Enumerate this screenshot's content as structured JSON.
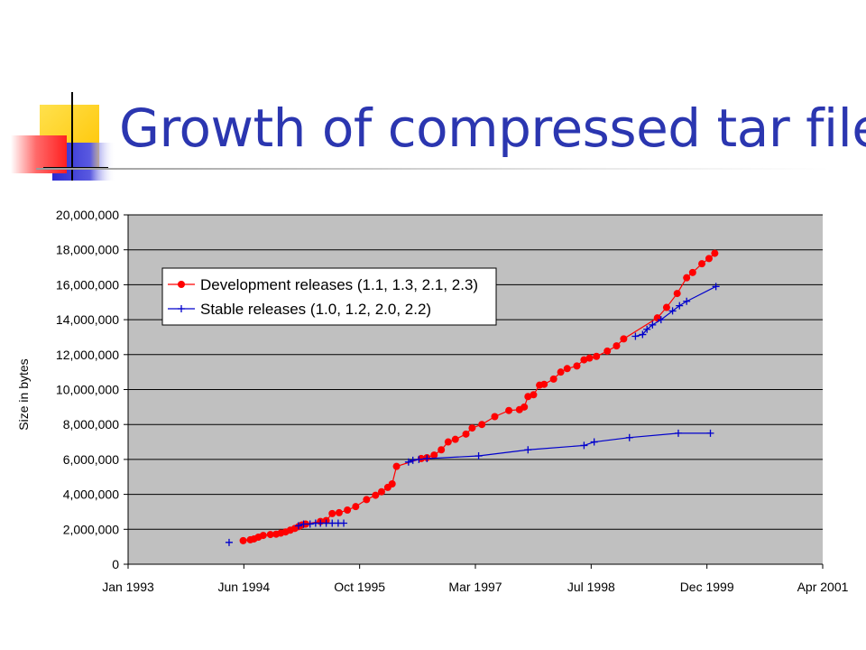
{
  "slide": {
    "title": "Growth of compressed tar file"
  },
  "colors": {
    "title": "#2b36b0",
    "plot_bg": "#c0c0c0",
    "development": "#ff0000",
    "stable": "#0000cc",
    "deco_yellow": "#ffd400",
    "deco_blue": "#3333cc",
    "deco_red": "#ff4040"
  },
  "chart_data": {
    "type": "line",
    "title": "",
    "xlabel": "",
    "ylabel": "Size in bytes",
    "x_scale": "date",
    "xlim": [
      "1993-01-01",
      "2001-04-01"
    ],
    "ylim": [
      0,
      20000000
    ],
    "x_ticks": [
      "Jan 1993",
      "Jun 1994",
      "Oct 1995",
      "Mar 1997",
      "Jul 1998",
      "Dec 1999",
      "Apr 2001"
    ],
    "y_ticks": [
      "0",
      "2,000,000",
      "4,000,000",
      "6,000,000",
      "8,000,000",
      "10,000,000",
      "12,000,000",
      "14,000,000",
      "16,000,000",
      "18,000,000",
      "20,000,000"
    ],
    "grid": "horizontal",
    "legend_position": "top-left",
    "series": [
      {
        "name": "Development releases (1.1, 1.3, 2.1, 2.3)",
        "color": "#ff0000",
        "marker": "circle",
        "points": [
          [
            "1994-05-15",
            1350000
          ],
          [
            "1994-06-15",
            1400000
          ],
          [
            "1994-07-01",
            1450000
          ],
          [
            "1994-07-20",
            1550000
          ],
          [
            "1994-08-10",
            1650000
          ],
          [
            "1994-09-10",
            1700000
          ],
          [
            "1994-10-05",
            1720000
          ],
          [
            "1994-10-25",
            1780000
          ],
          [
            "1994-11-15",
            1850000
          ],
          [
            "1994-12-05",
            1950000
          ],
          [
            "1994-12-25",
            2050000
          ],
          [
            "1995-01-10",
            2150000
          ],
          [
            "1995-01-25",
            2250000
          ],
          [
            "1995-02-10",
            2300000
          ],
          [
            "1995-04-15",
            2450000
          ],
          [
            "1995-05-10",
            2500000
          ],
          [
            "1995-06-05",
            2900000
          ],
          [
            "1995-07-05",
            2950000
          ],
          [
            "1995-08-10",
            3100000
          ],
          [
            "1995-09-15",
            3300000
          ],
          [
            "1995-11-01",
            3700000
          ],
          [
            "1995-12-10",
            3950000
          ],
          [
            "1996-01-05",
            4150000
          ],
          [
            "1996-02-01",
            4400000
          ],
          [
            "1996-02-20",
            4600000
          ],
          [
            "1996-03-10",
            5600000
          ],
          [
            "1996-06-25",
            6050000
          ],
          [
            "1996-07-20",
            6100000
          ],
          [
            "1996-08-20",
            6250000
          ],
          [
            "1996-09-20",
            6550000
          ],
          [
            "1996-10-20",
            7000000
          ],
          [
            "1996-11-20",
            7150000
          ],
          [
            "1997-01-05",
            7450000
          ],
          [
            "1997-02-01",
            7800000
          ],
          [
            "1997-03-15",
            8000000
          ],
          [
            "1997-05-10",
            8450000
          ],
          [
            "1997-07-10",
            8800000
          ],
          [
            "1997-08-25",
            8850000
          ],
          [
            "1997-09-15",
            9000000
          ],
          [
            "1997-10-01",
            9600000
          ],
          [
            "1997-10-25",
            9700000
          ],
          [
            "1997-11-20",
            10250000
          ],
          [
            "1997-12-10",
            10300000
          ],
          [
            "1998-01-20",
            10600000
          ],
          [
            "1998-02-20",
            11000000
          ],
          [
            "1998-03-20",
            11200000
          ],
          [
            "1998-05-01",
            11350000
          ],
          [
            "1998-06-01",
            11700000
          ],
          [
            "1998-06-25",
            11800000
          ],
          [
            "1998-07-25",
            11900000
          ],
          [
            "1998-09-10",
            12200000
          ],
          [
            "1998-10-20",
            12500000
          ],
          [
            "1998-11-20",
            12900000
          ],
          [
            "1999-04-15",
            14100000
          ],
          [
            "1999-05-25",
            14700000
          ],
          [
            "1999-07-10",
            15500000
          ],
          [
            "1999-08-20",
            16400000
          ],
          [
            "1999-09-15",
            16700000
          ],
          [
            "1999-10-25",
            17200000
          ],
          [
            "1999-11-25",
            17500000
          ],
          [
            "1999-12-20",
            17800000
          ]
        ]
      },
      {
        "name": "Stable releases (1.0, 1.2, 2.0, 2.2)",
        "color": "#0000cc",
        "marker": "plus",
        "points_segments": [
          [
            [
              "1994-03-15",
              1250000
            ]
          ],
          [
            [
              "1995-01-10",
              2200000
            ],
            [
              "1995-02-01",
              2300000
            ],
            [
              "1995-03-01",
              2300000
            ],
            [
              "1995-03-25",
              2350000
            ],
            [
              "1995-04-15",
              2350000
            ],
            [
              "1995-05-10",
              2350000
            ],
            [
              "1995-06-05",
              2350000
            ],
            [
              "1995-07-01",
              2350000
            ],
            [
              "1995-07-25",
              2350000
            ]
          ],
          [
            [
              "1996-05-01",
              5850000
            ],
            [
              "1996-05-20",
              5950000
            ],
            [
              "1996-06-15",
              6000000
            ],
            [
              "1996-07-20",
              6050000
            ],
            [
              "1997-03-01",
              6200000
            ],
            [
              "1997-10-01",
              6550000
            ],
            [
              "1998-06-01",
              6800000
            ],
            [
              "1998-07-15",
              7000000
            ],
            [
              "1998-12-15",
              7250000
            ],
            [
              "1999-07-15",
              7500000
            ],
            [
              "1999-12-01",
              7500000
            ]
          ],
          [
            [
              "1999-01-10",
              13050000
            ],
            [
              "1999-02-10",
              13150000
            ],
            [
              "1999-03-01",
              13450000
            ],
            [
              "1999-03-25",
              13700000
            ],
            [
              "1999-05-01",
              14000000
            ],
            [
              "1999-06-20",
              14500000
            ],
            [
              "1999-07-20",
              14800000
            ],
            [
              "1999-08-20",
              15050000
            ],
            [
              "1999-12-25",
              15900000
            ]
          ]
        ]
      }
    ]
  }
}
